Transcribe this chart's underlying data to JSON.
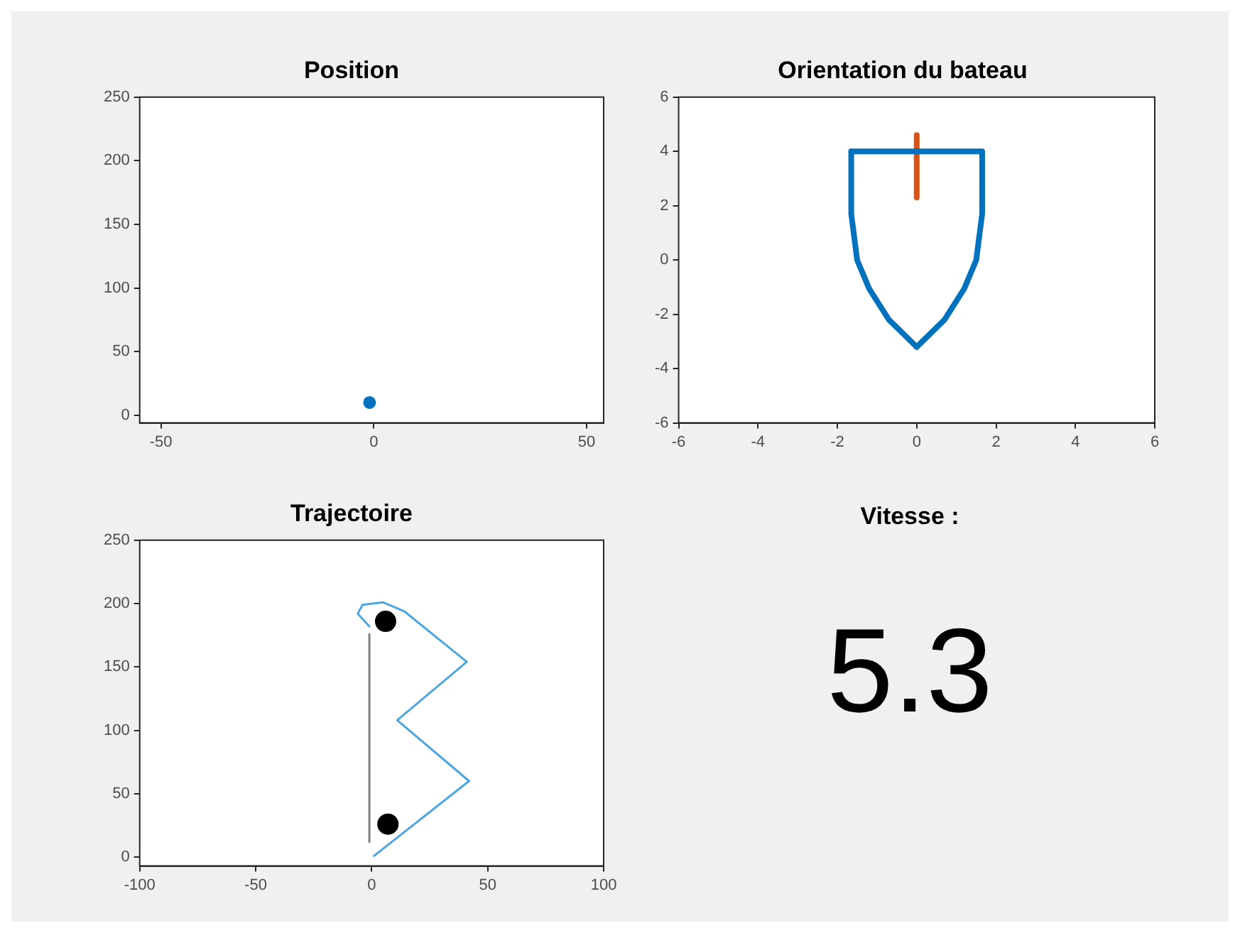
{
  "chart_data": [
    {
      "type": "scatter",
      "title": "Position",
      "xlim": [
        -55,
        54
      ],
      "ylim": [
        -6,
        250
      ],
      "xticks": [
        -50,
        0,
        50
      ],
      "yticks": [
        0,
        50,
        100,
        150,
        200,
        250
      ],
      "series": [
        {
          "color": "#0072bd",
          "x": [
            -1
          ],
          "values": [
            10
          ]
        }
      ]
    },
    {
      "type": "line",
      "title": "Orientation du bateau",
      "xlim": [
        -6,
        6
      ],
      "ylim": [
        -6,
        6
      ],
      "xticks": [
        -6,
        -4,
        -2,
        0,
        2,
        4,
        6
      ],
      "yticks": [
        -6,
        -4,
        -2,
        0,
        2,
        4,
        6
      ],
      "series": [
        {
          "color": "#0072bd",
          "x": [
            -1.65,
            1.65,
            1.65,
            1.5,
            1.2,
            0.7,
            0
          ],
          "values": [
            4,
            4,
            1.7,
            0,
            -1.05,
            -2.2,
            -3.2
          ]
        },
        {
          "color": "#0072bd",
          "x": [
            0,
            -0.7,
            -1.2,
            -1.5,
            -1.65,
            -1.65
          ],
          "values": [
            -3.2,
            -2.2,
            -1.05,
            0,
            1.7,
            4
          ]
        },
        {
          "color": "#d95319",
          "x": [
            0,
            0
          ],
          "values": [
            2.3,
            4.6
          ]
        }
      ]
    },
    {
      "type": "line",
      "title": "Trajectoire",
      "xlim": [
        -100,
        100
      ],
      "ylim": [
        -7,
        250
      ],
      "xticks": [
        -100,
        -50,
        0,
        50,
        100
      ],
      "yticks": [
        0,
        50,
        100,
        150,
        200,
        250
      ],
      "series": [
        {
          "color": "#4da6e0",
          "x": [
            1,
            42,
            11,
            41,
            14,
            5,
            -4,
            -6,
            -1
          ],
          "values": [
            1,
            60,
            108,
            154,
            194,
            201,
            199,
            192,
            182
          ]
        },
        {
          "color": "#808080",
          "x": [
            -1,
            -1
          ],
          "values": [
            176,
            12
          ]
        },
        {
          "type": "scatter",
          "color": "#000000",
          "x": [
            6,
            7
          ],
          "values": [
            186,
            26
          ]
        }
      ]
    },
    {
      "type": "other",
      "title": "Vitesse :",
      "annotations": [
        "5.3"
      ]
    }
  ]
}
